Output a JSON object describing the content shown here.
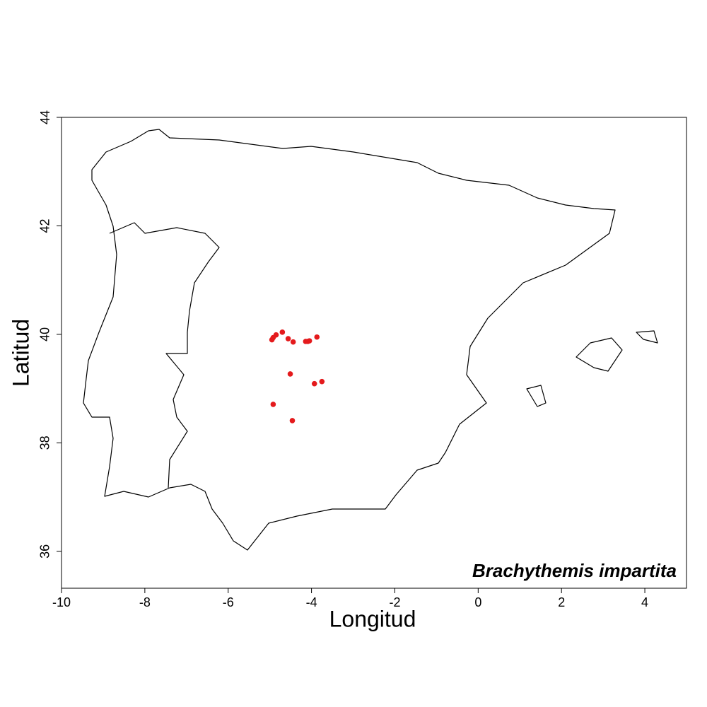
{
  "chart_data": {
    "type": "scatter",
    "x_label": "Longitud",
    "y_label": "Latitud",
    "annotation": "Brachythemis impartita",
    "x": [
      -4.7,
      -4.85,
      -4.92,
      -4.95,
      -4.56,
      -4.44,
      -4.14,
      -4.09,
      -4.05,
      -3.87,
      -4.51,
      -3.93,
      -3.75,
      -4.92,
      -4.46
    ],
    "values": [
      40.04,
      39.99,
      39.94,
      39.9,
      39.92,
      39.86,
      39.87,
      39.87,
      39.88,
      39.95,
      39.27,
      39.09,
      39.13,
      38.71,
      38.41
    ],
    "color": "#e41a1c",
    "xlim": [
      -10,
      5
    ],
    "ylim": [
      35.32,
      44
    ],
    "xticks": [
      -10,
      -8,
      -6,
      -4,
      -2,
      0,
      2,
      4
    ],
    "yticks": [
      36,
      38,
      40,
      42,
      44
    ]
  }
}
